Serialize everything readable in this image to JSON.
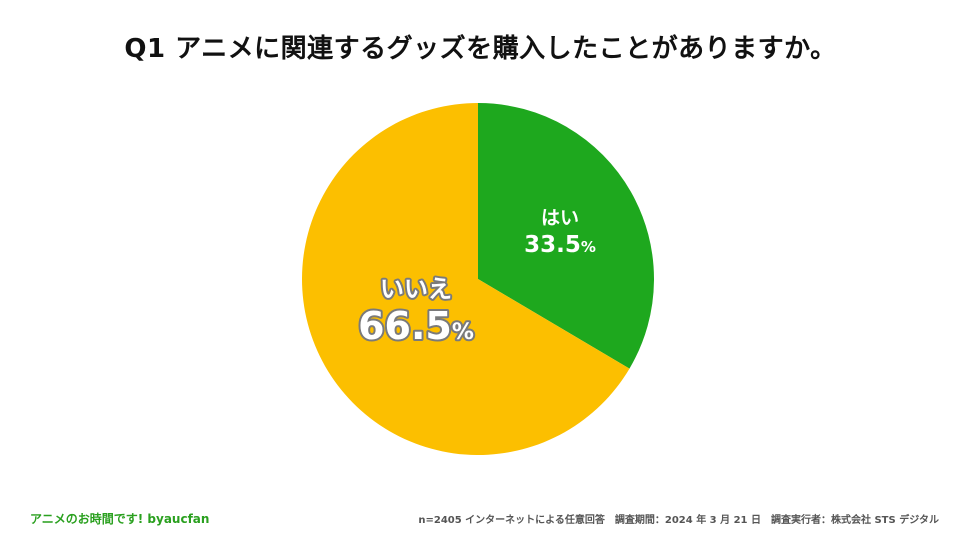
{
  "chart_data": {
    "type": "pie",
    "title": "Q1 アニメに関連するグッズを購入したことがありますか。",
    "slices": [
      {
        "label": "はい",
        "value": 33.5,
        "display": "33.5",
        "unit": "%",
        "color": "#1ea81e"
      },
      {
        "label": "いいえ",
        "value": 66.5,
        "display": "66.5",
        "unit": "%",
        "color": "#fcbf00"
      }
    ],
    "start_angle_deg": 0,
    "direction": "clockwise"
  },
  "footer": {
    "left": "アニメのお時間です! byaucfan",
    "right": "n=2405 インターネットによる任意回答　調査期間：2024 年 3 月 21 日　調査実行者：株式会社 STS デジタル"
  }
}
